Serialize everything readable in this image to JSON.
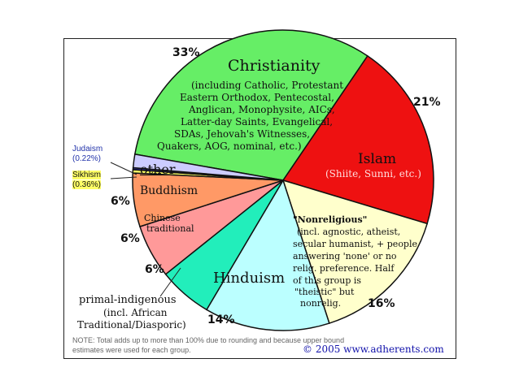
{
  "chart_data": {
    "type": "pie",
    "slices": [
      {
        "label": "Christianity",
        "percent_label": "33%",
        "value": 33,
        "color": "#66ee66"
      },
      {
        "label": "Islam",
        "percent_label": "21%",
        "value": 21,
        "color": "#ee1111"
      },
      {
        "label": "\"Nonreligious\"",
        "percent_label": "16%",
        "value": 16,
        "color": "#ffffcc"
      },
      {
        "label": "Hinduism",
        "percent_label": "14%",
        "value": 14,
        "color": "#bbffff"
      },
      {
        "label": "primal-indigenous",
        "percent_label": "6%",
        "value": 6,
        "color": "#22eebb"
      },
      {
        "label": "Chinese traditional",
        "percent_label": "6%",
        "value": 6,
        "color": "#ff9999"
      },
      {
        "label": "Buddhism",
        "percent_label": "6%",
        "value": 6,
        "color": "#ff9966"
      },
      {
        "label": "Sikhism",
        "percent_label": "(0.36%)",
        "value": 0.36,
        "color": "#ffff66"
      },
      {
        "label": "Judaism",
        "percent_label": "(0.22%)",
        "value": 0.22,
        "color": "#3333aa"
      },
      {
        "label": "other",
        "percent_label": "",
        "value": 1.5,
        "color": "#ccccff"
      }
    ]
  },
  "labels": {
    "christianity_title": "Christianity",
    "christianity_detail": [
      "(including Catholic, Protestant",
      "Eastern Orthodox, Pentecostal,",
      "Anglican, Monophysite, AICs,",
      "Latter-day Saints, Evangelical,",
      "SDAs, Jehovah's Witnesses,",
      "Quakers, AOG, nominal, etc.)"
    ],
    "islam_title": "Islam",
    "islam_detail": "(Shiite, Sunni, etc.)",
    "nonreligious_title": "\"Nonreligious\"",
    "nonreligious_detail": [
      "(incl. agnostic, atheist,",
      "secular humanist, + people",
      "answering 'none' or no",
      "relig. preference. Half",
      "of this group is",
      "\"theistic\" but",
      "nonrelig."
    ],
    "hinduism_title": "Hinduism",
    "primal_title": "primal-indigenous",
    "primal_detail": [
      "(incl. African",
      "Traditional/Diasporic)"
    ],
    "chinese_line1": "Chinese",
    "chinese_line2": "traditional",
    "buddhism_title": "Buddhism",
    "other_title": "other",
    "judaism_title": "Judaism",
    "judaism_pct": "(0.22%)",
    "sikhism_title": "Sikhism",
    "sikhism_pct": "(0.36%)",
    "pct_christianity": "33%",
    "pct_islam": "21%",
    "pct_nonreligious": "16%",
    "pct_hinduism": "14%",
    "pct_primal": "6%",
    "pct_chinese": "6%",
    "pct_buddhism": "6%"
  },
  "footer": {
    "note_line1": "NOTE: Total adds up to more than 100% due to rounding and because upper bound",
    "note_line2": "estimates were used for each group.",
    "copyright": "© 2005 www.adherents.com"
  }
}
